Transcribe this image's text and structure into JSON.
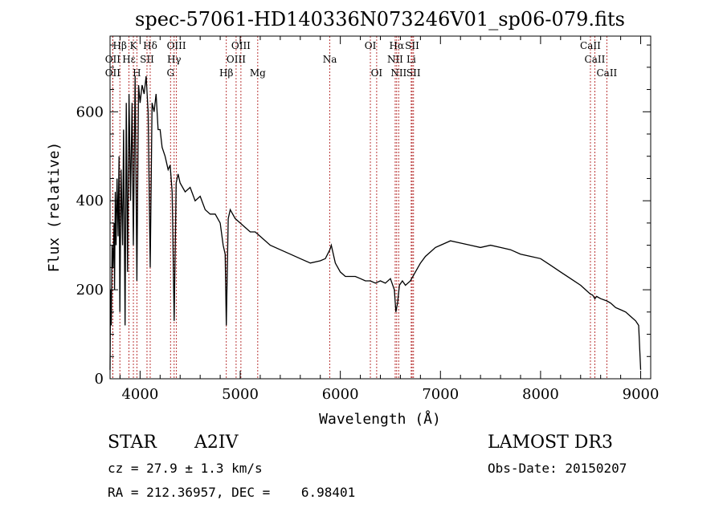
{
  "chart_data": {
    "type": "line",
    "title": "spec-57061-HD140336N073246V01_sp06-079.fits",
    "xlabel": "Wavelength (Å)",
    "ylabel": "Flux (relative)",
    "xlim": [
      3700,
      9100
    ],
    "ylim": [
      0,
      770
    ],
    "x_ticks": [
      4000,
      5000,
      6000,
      7000,
      8000,
      9000
    ],
    "x_tick_labels": [
      "4000",
      "5000",
      "6000",
      "7000",
      "8000",
      "9000"
    ],
    "y_ticks": [
      0,
      200,
      400,
      600
    ],
    "y_tick_labels": [
      "0",
      "200",
      "400",
      "600"
    ],
    "grid": false,
    "series": [
      {
        "name": "spectrum",
        "x": [
          3700,
          3705,
          3712,
          3720,
          3730,
          3740,
          3745,
          3752,
          3760,
          3770,
          3780,
          3790,
          3798,
          3810,
          3825,
          3835,
          3850,
          3862,
          3875,
          3889,
          3905,
          3920,
          3933,
          3950,
          3968,
          3985,
          4000,
          4020,
          4040,
          4060,
          4080,
          4101,
          4120,
          4140,
          4160,
          4180,
          4200,
          4220,
          4250,
          4280,
          4300,
          4320,
          4340,
          4360,
          4380,
          4400,
          4450,
          4500,
          4550,
          4600,
          4650,
          4700,
          4750,
          4800,
          4830,
          4850,
          4861,
          4880,
          4900,
          4950,
          5000,
          5050,
          5100,
          5150,
          5200,
          5300,
          5400,
          5500,
          5600,
          5700,
          5800,
          5850,
          5895,
          5910,
          5950,
          6000,
          6050,
          6100,
          6150,
          6200,
          6250,
          6300,
          6350,
          6400,
          6450,
          6500,
          6540,
          6555,
          6563,
          6572,
          6590,
          6620,
          6650,
          6700,
          6750,
          6800,
          6850,
          6900,
          6950,
          7000,
          7050,
          7100,
          7200,
          7300,
          7400,
          7500,
          7600,
          7700,
          7800,
          7900,
          8000,
          8100,
          8200,
          8300,
          8400,
          8450,
          8498,
          8520,
          8542,
          8560,
          8600,
          8662,
          8700,
          8750,
          8800,
          8850,
          8900,
          8950,
          8980,
          9000
        ],
        "y": [
          20,
          200,
          120,
          300,
          250,
          350,
          200,
          420,
          300,
          450,
          320,
          500,
          150,
          470,
          300,
          560,
          120,
          620,
          240,
          640,
          400,
          620,
          300,
          680,
          220,
          660,
          620,
          660,
          640,
          680,
          600,
          250,
          620,
          600,
          640,
          560,
          560,
          520,
          500,
          470,
          480,
          420,
          130,
          440,
          460,
          440,
          420,
          430,
          400,
          410,
          380,
          370,
          370,
          350,
          300,
          280,
          120,
          360,
          380,
          360,
          350,
          340,
          330,
          330,
          320,
          300,
          290,
          280,
          270,
          260,
          265,
          270,
          290,
          300,
          260,
          240,
          230,
          230,
          230,
          225,
          220,
          220,
          215,
          220,
          215,
          225,
          200,
          150,
          160,
          170,
          210,
          220,
          210,
          220,
          240,
          260,
          275,
          285,
          295,
          300,
          305,
          310,
          305,
          300,
          295,
          300,
          295,
          290,
          280,
          275,
          270,
          255,
          240,
          225,
          210,
          200,
          190,
          188,
          180,
          185,
          180,
          175,
          170,
          160,
          155,
          150,
          140,
          130,
          120,
          20
        ]
      }
    ],
    "line_ids": [
      {
        "label": "Hβ",
        "x": 3798,
        "row": 1
      },
      {
        "label": "K",
        "x": 3933,
        "row": 1
      },
      {
        "label": "Hδ",
        "x": 4101,
        "row": 1
      },
      {
        "label": "OIII",
        "x": 4363,
        "row": 1
      },
      {
        "label": "OIII",
        "x": 5007,
        "row": 1
      },
      {
        "label": "OI",
        "x": 6300,
        "row": 1
      },
      {
        "label": "Hα",
        "x": 6563,
        "row": 1
      },
      {
        "label": "SII",
        "x": 6717,
        "row": 1
      },
      {
        "label": "CaII",
        "x": 8498,
        "row": 1
      },
      {
        "label": "OII",
        "x": 3727,
        "row": 2
      },
      {
        "label": "Hε",
        "x": 3889,
        "row": 2
      },
      {
        "label": "SII",
        "x": 4069,
        "row": 2
      },
      {
        "label": "Hγ",
        "x": 4340,
        "row": 2
      },
      {
        "label": "OIII",
        "x": 4959,
        "row": 2
      },
      {
        "label": "Na",
        "x": 5895,
        "row": 2
      },
      {
        "label": "NII",
        "x": 6548,
        "row": 2
      },
      {
        "label": "Li",
        "x": 6708,
        "row": 2
      },
      {
        "label": "CaII",
        "x": 8542,
        "row": 2
      },
      {
        "label": "OII",
        "x": 3727,
        "row": 3
      },
      {
        "label": "H",
        "x": 3968,
        "row": 3
      },
      {
        "label": "G",
        "x": 4304,
        "row": 3
      },
      {
        "label": "Hβ",
        "x": 4861,
        "row": 3
      },
      {
        "label": "Mg",
        "x": 5175,
        "row": 3
      },
      {
        "label": "OI",
        "x": 6363,
        "row": 3
      },
      {
        "label": "NII",
        "x": 6583,
        "row": 3
      },
      {
        "label": "SII",
        "x": 6731,
        "row": 3
      },
      {
        "label": "CaII",
        "x": 8662,
        "row": 3
      }
    ]
  },
  "info": {
    "object_class": "STAR",
    "subclass": "A2IV",
    "survey": "LAMOST DR3",
    "cz": "cz = 27.9 ± 1.3 km/s",
    "obs_date": "Obs-Date: 20150207",
    "coords": "RA = 212.36957, DEC =    6.98401"
  },
  "colors": {
    "spectrum": "#000000",
    "line_marker": "#b22222",
    "axis": "#000000"
  }
}
